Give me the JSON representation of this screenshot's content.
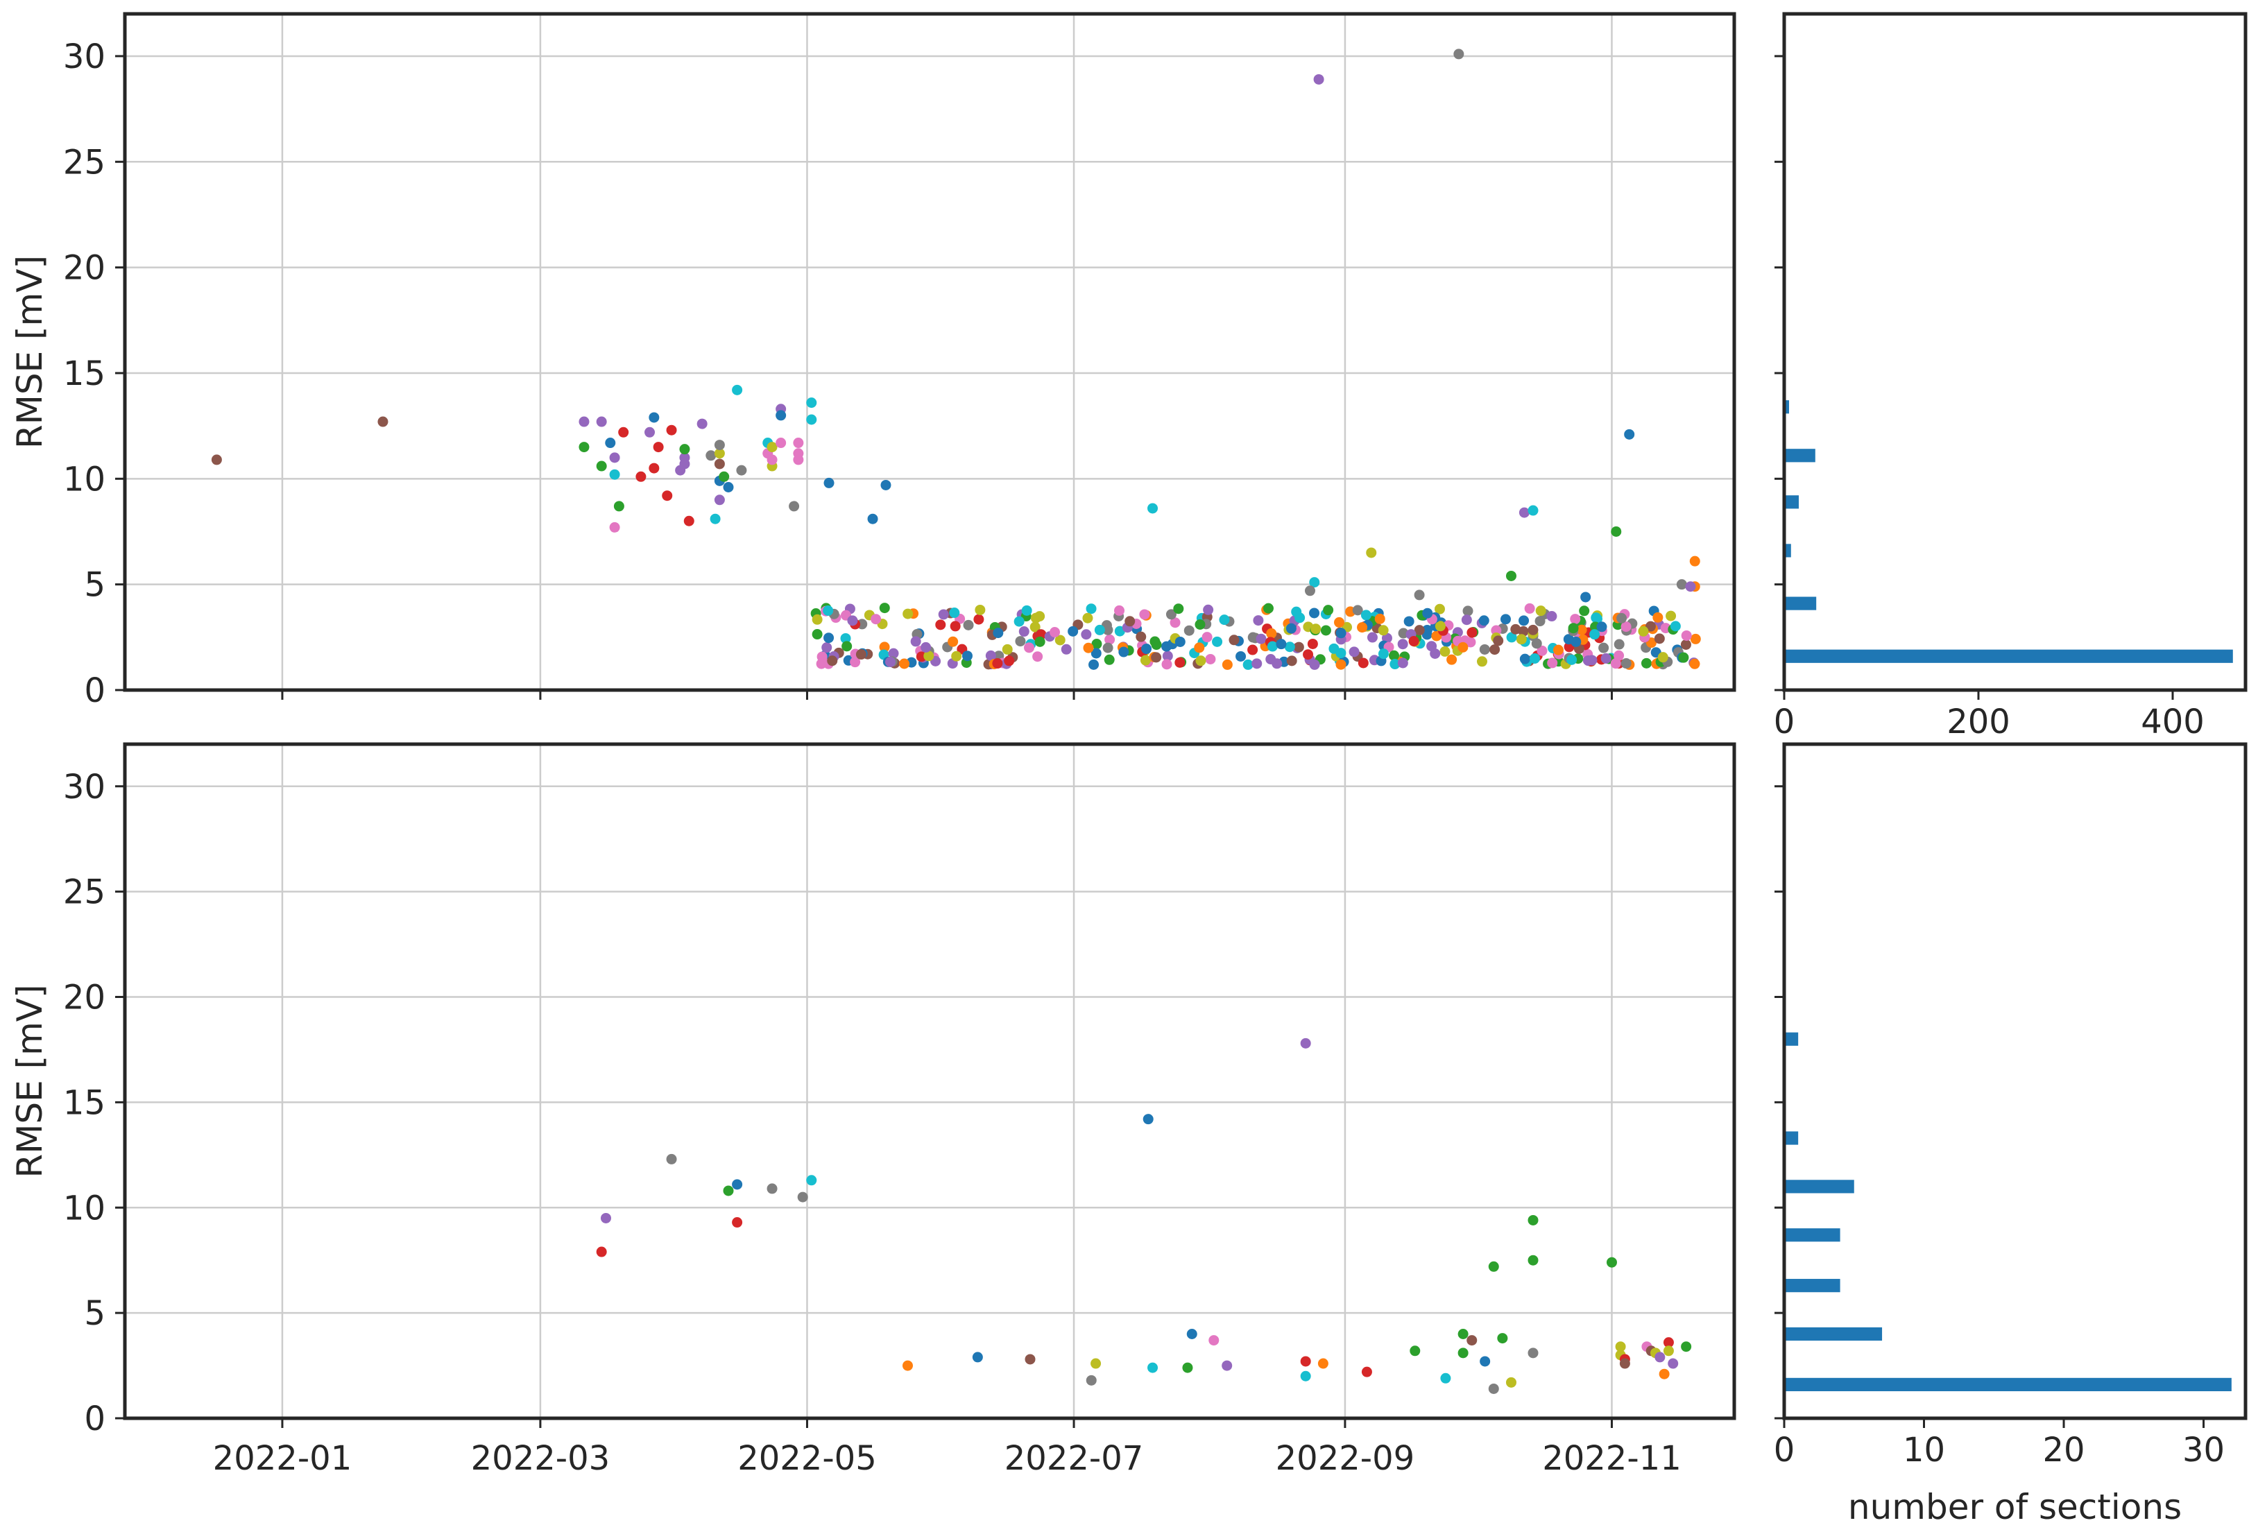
{
  "chart_data": [
    {
      "type": "scatter",
      "panel": "top-left",
      "ylabel": "RMSE [mV]",
      "xlim": [
        "2021-11-26",
        "2022-11-29"
      ],
      "ylim": [
        0,
        32
      ],
      "yticks": [
        0,
        5,
        10,
        15,
        20,
        25,
        30
      ],
      "xticks": [
        "2022-01",
        "2022-03",
        "2022-05",
        "2022-07",
        "2022-09",
        "2022-11"
      ],
      "show_xtick_labels": false,
      "grid": true,
      "points": [
        {
          "x": "2021-12-17",
          "y": 10.9,
          "c": "#8c564b"
        },
        {
          "x": "2022-01-24",
          "y": 12.7,
          "c": "#8c564b"
        },
        {
          "x": "2022-03-11",
          "y": 11.5,
          "c": "#2ca02c"
        },
        {
          "x": "2022-03-11",
          "y": 12.7,
          "c": "#9467bd"
        },
        {
          "x": "2022-03-15",
          "y": 12.7,
          "c": "#9467bd"
        },
        {
          "x": "2022-03-15",
          "y": 10.6,
          "c": "#2ca02c"
        },
        {
          "x": "2022-03-17",
          "y": 11.7,
          "c": "#1f77b4"
        },
        {
          "x": "2022-03-18",
          "y": 11.0,
          "c": "#9467bd"
        },
        {
          "x": "2022-03-18",
          "y": 10.2,
          "c": "#17becf"
        },
        {
          "x": "2022-03-18",
          "y": 7.7,
          "c": "#e377c2"
        },
        {
          "x": "2022-03-19",
          "y": 8.7,
          "c": "#2ca02c"
        },
        {
          "x": "2022-03-20",
          "y": 12.2,
          "c": "#d62728"
        },
        {
          "x": "2022-03-24",
          "y": 10.1,
          "c": "#d62728"
        },
        {
          "x": "2022-03-26",
          "y": 12.2,
          "c": "#9467bd"
        },
        {
          "x": "2022-03-27",
          "y": 12.9,
          "c": "#1f77b4"
        },
        {
          "x": "2022-03-27",
          "y": 10.5,
          "c": "#d62728"
        },
        {
          "x": "2022-03-28",
          "y": 11.5,
          "c": "#d62728"
        },
        {
          "x": "2022-03-30",
          "y": 9.2,
          "c": "#d62728"
        },
        {
          "x": "2022-03-31",
          "y": 12.3,
          "c": "#d62728"
        },
        {
          "x": "2022-04-02",
          "y": 10.4,
          "c": "#9467bd"
        },
        {
          "x": "2022-04-03",
          "y": 11.0,
          "c": "#9467bd"
        },
        {
          "x": "2022-04-03",
          "y": 10.7,
          "c": "#9467bd"
        },
        {
          "x": "2022-04-03",
          "y": 11.4,
          "c": "#2ca02c"
        },
        {
          "x": "2022-04-04",
          "y": 8.0,
          "c": "#d62728"
        },
        {
          "x": "2022-04-07",
          "y": 12.6,
          "c": "#9467bd"
        },
        {
          "x": "2022-04-09",
          "y": 11.1,
          "c": "#7f7f7f"
        },
        {
          "x": "2022-04-10",
          "y": 8.1,
          "c": "#17becf"
        },
        {
          "x": "2022-04-11",
          "y": 11.2,
          "c": "#bcbd22"
        },
        {
          "x": "2022-04-11",
          "y": 11.6,
          "c": "#7f7f7f"
        },
        {
          "x": "2022-04-11",
          "y": 10.7,
          "c": "#8c564b"
        },
        {
          "x": "2022-04-11",
          "y": 9.9,
          "c": "#1f77b4"
        },
        {
          "x": "2022-04-11",
          "y": 9.0,
          "c": "#9467bd"
        },
        {
          "x": "2022-04-12",
          "y": 10.1,
          "c": "#2ca02c"
        },
        {
          "x": "2022-04-13",
          "y": 9.6,
          "c": "#1f77b4"
        },
        {
          "x": "2022-04-15",
          "y": 14.2,
          "c": "#17becf"
        },
        {
          "x": "2022-04-16",
          "y": 10.4,
          "c": "#7f7f7f"
        },
        {
          "x": "2022-04-22",
          "y": 11.7,
          "c": "#17becf"
        },
        {
          "x": "2022-04-22",
          "y": 11.2,
          "c": "#e377c2"
        },
        {
          "x": "2022-04-23",
          "y": 11.5,
          "c": "#bcbd22"
        },
        {
          "x": "2022-04-23",
          "y": 10.6,
          "c": "#bcbd22"
        },
        {
          "x": "2022-04-23",
          "y": 10.9,
          "c": "#e377c2"
        },
        {
          "x": "2022-04-25",
          "y": 13.3,
          "c": "#9467bd"
        },
        {
          "x": "2022-04-25",
          "y": 13.0,
          "c": "#1f77b4"
        },
        {
          "x": "2022-04-25",
          "y": 11.7,
          "c": "#e377c2"
        },
        {
          "x": "2022-04-28",
          "y": 8.7,
          "c": "#7f7f7f"
        },
        {
          "x": "2022-04-29",
          "y": 11.7,
          "c": "#e377c2"
        },
        {
          "x": "2022-04-29",
          "y": 11.2,
          "c": "#e377c2"
        },
        {
          "x": "2022-04-29",
          "y": 10.9,
          "c": "#e377c2"
        },
        {
          "x": "2022-05-02",
          "y": 13.6,
          "c": "#17becf"
        },
        {
          "x": "2022-05-02",
          "y": 12.8,
          "c": "#17becf"
        },
        {
          "x": "2022-05-06",
          "y": 9.8,
          "c": "#1f77b4"
        },
        {
          "x": "2022-05-16",
          "y": 8.1,
          "c": "#1f77b4"
        },
        {
          "x": "2022-05-19",
          "y": 9.7,
          "c": "#1f77b4"
        },
        {
          "x": "2022-07-19",
          "y": 8.6,
          "c": "#17becf"
        },
        {
          "x": "2022-08-25",
          "y": 5.1,
          "c": "#17becf"
        },
        {
          "x": "2022-08-26",
          "y": 28.9,
          "c": "#9467bd"
        },
        {
          "x": "2022-09-07",
          "y": 6.5,
          "c": "#bcbd22"
        },
        {
          "x": "2022-09-27",
          "y": 30.1,
          "c": "#7f7f7f"
        },
        {
          "x": "2022-10-09",
          "y": 5.4,
          "c": "#2ca02c"
        },
        {
          "x": "2022-10-12",
          "y": 8.4,
          "c": "#9467bd"
        },
        {
          "x": "2022-10-14",
          "y": 8.5,
          "c": "#17becf"
        },
        {
          "x": "2022-10-26",
          "y": 4.4,
          "c": "#1f77b4"
        },
        {
          "x": "2022-11-02",
          "y": 7.5,
          "c": "#2ca02c"
        },
        {
          "x": "2022-11-05",
          "y": 12.1,
          "c": "#1f77b4"
        },
        {
          "x": "2022-11-20",
          "y": 6.1,
          "c": "#ff7f0e"
        },
        {
          "x": "2022-11-17",
          "y": 5.0,
          "c": "#7f7f7f"
        },
        {
          "x": "2022-11-20",
          "y": 4.9,
          "c": "#ff7f0e"
        },
        {
          "x": "2022-11-19",
          "y": 4.9,
          "c": "#9467bd"
        },
        {
          "x": "2022-09-18",
          "y": 4.5,
          "c": "#7f7f7f"
        },
        {
          "x": "2022-08-24",
          "y": 4.7,
          "c": "#7f7f7f"
        }
      ],
      "dense_band": {
        "x_start": "2022-05-03",
        "x_end": "2022-11-21",
        "y_min": 1.2,
        "y_max": 3.9,
        "count": 430,
        "colors": [
          "#1f77b4",
          "#ff7f0e",
          "#2ca02c",
          "#d62728",
          "#9467bd",
          "#8c564b",
          "#e377c2",
          "#7f7f7f",
          "#bcbd22",
          "#17becf"
        ]
      }
    },
    {
      "type": "bar",
      "orientation": "horizontal",
      "panel": "top-right",
      "shared_y": true,
      "bin_centers": [
        1.6,
        4.1,
        6.6,
        8.9,
        11.1,
        13.4
      ],
      "values": [
        462,
        33,
        7,
        15,
        32,
        5
      ],
      "xlim": [
        0,
        475
      ],
      "xticks": [
        0,
        200,
        400
      ],
      "color": "#1f77b4"
    },
    {
      "type": "scatter",
      "panel": "bottom-left",
      "ylabel": "RMSE [mV]",
      "xlim": [
        "2021-11-26",
        "2022-11-29"
      ],
      "ylim": [
        0,
        32
      ],
      "yticks": [
        0,
        5,
        10,
        15,
        20,
        25,
        30
      ],
      "xticks": [
        "2022-01",
        "2022-03",
        "2022-05",
        "2022-07",
        "2022-09",
        "2022-11"
      ],
      "show_xtick_labels": true,
      "grid": true,
      "points": [
        {
          "x": "2022-03-15",
          "y": 7.9,
          "c": "#d62728"
        },
        {
          "x": "2022-03-16",
          "y": 9.5,
          "c": "#9467bd"
        },
        {
          "x": "2022-03-31",
          "y": 12.3,
          "c": "#7f7f7f"
        },
        {
          "x": "2022-04-13",
          "y": 10.8,
          "c": "#2ca02c"
        },
        {
          "x": "2022-04-15",
          "y": 11.1,
          "c": "#1f77b4"
        },
        {
          "x": "2022-04-15",
          "y": 9.3,
          "c": "#d62728"
        },
        {
          "x": "2022-04-23",
          "y": 10.9,
          "c": "#7f7f7f"
        },
        {
          "x": "2022-04-30",
          "y": 10.5,
          "c": "#7f7f7f"
        },
        {
          "x": "2022-05-02",
          "y": 11.3,
          "c": "#17becf"
        },
        {
          "x": "2022-05-24",
          "y": 2.5,
          "c": "#ff7f0e"
        },
        {
          "x": "2022-06-09",
          "y": 2.9,
          "c": "#1f77b4"
        },
        {
          "x": "2022-06-21",
          "y": 2.8,
          "c": "#8c564b"
        },
        {
          "x": "2022-07-05",
          "y": 1.8,
          "c": "#7f7f7f"
        },
        {
          "x": "2022-07-06",
          "y": 2.6,
          "c": "#bcbd22"
        },
        {
          "x": "2022-07-18",
          "y": 14.2,
          "c": "#1f77b4"
        },
        {
          "x": "2022-07-19",
          "y": 2.4,
          "c": "#17becf"
        },
        {
          "x": "2022-07-27",
          "y": 2.4,
          "c": "#2ca02c"
        },
        {
          "x": "2022-07-28",
          "y": 4.0,
          "c": "#1f77b4"
        },
        {
          "x": "2022-08-02",
          "y": 3.7,
          "c": "#e377c2"
        },
        {
          "x": "2022-08-05",
          "y": 2.5,
          "c": "#9467bd"
        },
        {
          "x": "2022-08-23",
          "y": 17.8,
          "c": "#9467bd"
        },
        {
          "x": "2022-08-23",
          "y": 2.7,
          "c": "#d62728"
        },
        {
          "x": "2022-08-23",
          "y": 2.0,
          "c": "#17becf"
        },
        {
          "x": "2022-08-27",
          "y": 2.6,
          "c": "#ff7f0e"
        },
        {
          "x": "2022-09-06",
          "y": 2.2,
          "c": "#d62728"
        },
        {
          "x": "2022-09-17",
          "y": 3.2,
          "c": "#2ca02c"
        },
        {
          "x": "2022-09-24",
          "y": 1.9,
          "c": "#17becf"
        },
        {
          "x": "2022-09-28",
          "y": 4.0,
          "c": "#2ca02c"
        },
        {
          "x": "2022-09-28",
          "y": 3.1,
          "c": "#2ca02c"
        },
        {
          "x": "2022-09-30",
          "y": 3.7,
          "c": "#8c564b"
        },
        {
          "x": "2022-10-03",
          "y": 2.7,
          "c": "#1f77b4"
        },
        {
          "x": "2022-10-05",
          "y": 7.2,
          "c": "#2ca02c"
        },
        {
          "x": "2022-10-05",
          "y": 1.4,
          "c": "#7f7f7f"
        },
        {
          "x": "2022-10-07",
          "y": 3.8,
          "c": "#2ca02c"
        },
        {
          "x": "2022-10-09",
          "y": 1.7,
          "c": "#bcbd22"
        },
        {
          "x": "2022-10-14",
          "y": 9.4,
          "c": "#2ca02c"
        },
        {
          "x": "2022-10-14",
          "y": 7.5,
          "c": "#2ca02c"
        },
        {
          "x": "2022-10-14",
          "y": 3.1,
          "c": "#7f7f7f"
        },
        {
          "x": "2022-11-01",
          "y": 7.4,
          "c": "#2ca02c"
        },
        {
          "x": "2022-11-03",
          "y": 3.4,
          "c": "#bcbd22"
        },
        {
          "x": "2022-11-03",
          "y": 3.0,
          "c": "#bcbd22"
        },
        {
          "x": "2022-11-04",
          "y": 2.8,
          "c": "#d62728"
        },
        {
          "x": "2022-11-04",
          "y": 2.6,
          "c": "#8c564b"
        },
        {
          "x": "2022-11-09",
          "y": 3.4,
          "c": "#e377c2"
        },
        {
          "x": "2022-11-10",
          "y": 3.2,
          "c": "#8c564b"
        },
        {
          "x": "2022-11-11",
          "y": 3.1,
          "c": "#bcbd22"
        },
        {
          "x": "2022-11-12",
          "y": 2.9,
          "c": "#9467bd"
        },
        {
          "x": "2022-11-13",
          "y": 2.1,
          "c": "#ff7f0e"
        },
        {
          "x": "2022-11-14",
          "y": 3.6,
          "c": "#d62728"
        },
        {
          "x": "2022-11-14",
          "y": 3.2,
          "c": "#bcbd22"
        },
        {
          "x": "2022-11-15",
          "y": 2.6,
          "c": "#9467bd"
        },
        {
          "x": "2022-11-18",
          "y": 3.4,
          "c": "#2ca02c"
        }
      ]
    },
    {
      "type": "bar",
      "orientation": "horizontal",
      "panel": "bottom-right",
      "shared_y": true,
      "bin_centers": [
        1.6,
        4.0,
        6.3,
        8.7,
        11.0,
        13.3,
        18.0
      ],
      "values": [
        32,
        7,
        4,
        4,
        5,
        1,
        1
      ],
      "xlim": [
        0,
        33
      ],
      "xticks": [
        0,
        10,
        20,
        30
      ],
      "xlabel": "number of sections",
      "color": "#1f77b4"
    }
  ]
}
